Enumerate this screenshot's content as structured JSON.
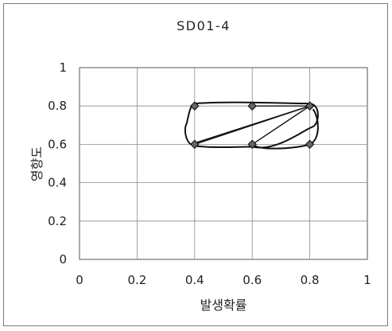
{
  "chart_data": {
    "type": "scatter",
    "title": "SD01-4",
    "xlabel": "발생확률",
    "ylabel": "영향도",
    "xlim": [
      0,
      1
    ],
    "ylim": [
      0,
      1
    ],
    "xticks": [
      "0",
      "0.2",
      "0.4",
      "0.6",
      "0.8",
      "1"
    ],
    "yticks": [
      "0",
      "0.2",
      "0.4",
      "0.6",
      "0.8",
      "1"
    ],
    "grid": true,
    "points": [
      {
        "x": 0.4,
        "y": 0.8
      },
      {
        "x": 0.4,
        "y": 0.6
      },
      {
        "x": 0.6,
        "y": 0.8
      },
      {
        "x": 0.6,
        "y": 0.6
      },
      {
        "x": 0.8,
        "y": 0.8
      },
      {
        "x": 0.8,
        "y": 0.6
      }
    ],
    "connections": [
      [
        [
          0.4,
          0.6
        ],
        [
          0.8,
          0.8
        ]
      ],
      [
        [
          0.4,
          0.6
        ],
        [
          0.8,
          0.8
        ]
      ],
      [
        [
          0.6,
          0.6
        ],
        [
          0.8,
          0.8
        ]
      ],
      [
        [
          0.6,
          0.8
        ],
        [
          0.8,
          0.8
        ]
      ]
    ],
    "marker_color": "#666666",
    "line_color": "#111111"
  }
}
